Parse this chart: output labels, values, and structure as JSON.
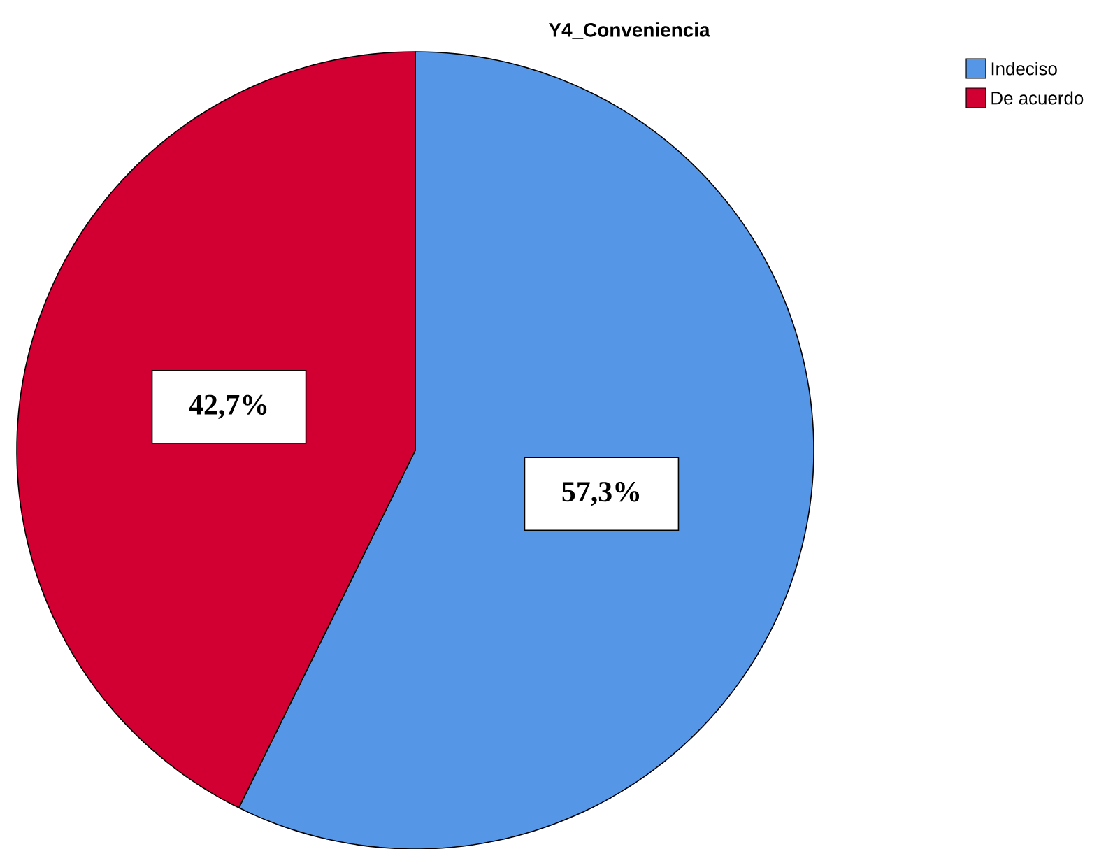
{
  "chart_data": {
    "type": "pie",
    "title": "Y4_Conveniencia",
    "categories": [
      "Indeciso",
      "De acuerdo"
    ],
    "values": [
      57.3,
      42.7
    ],
    "colors": [
      "#5596e6",
      "#d20032"
    ],
    "value_labels": [
      "57,3%",
      "42,7%"
    ],
    "legend": "top right"
  }
}
